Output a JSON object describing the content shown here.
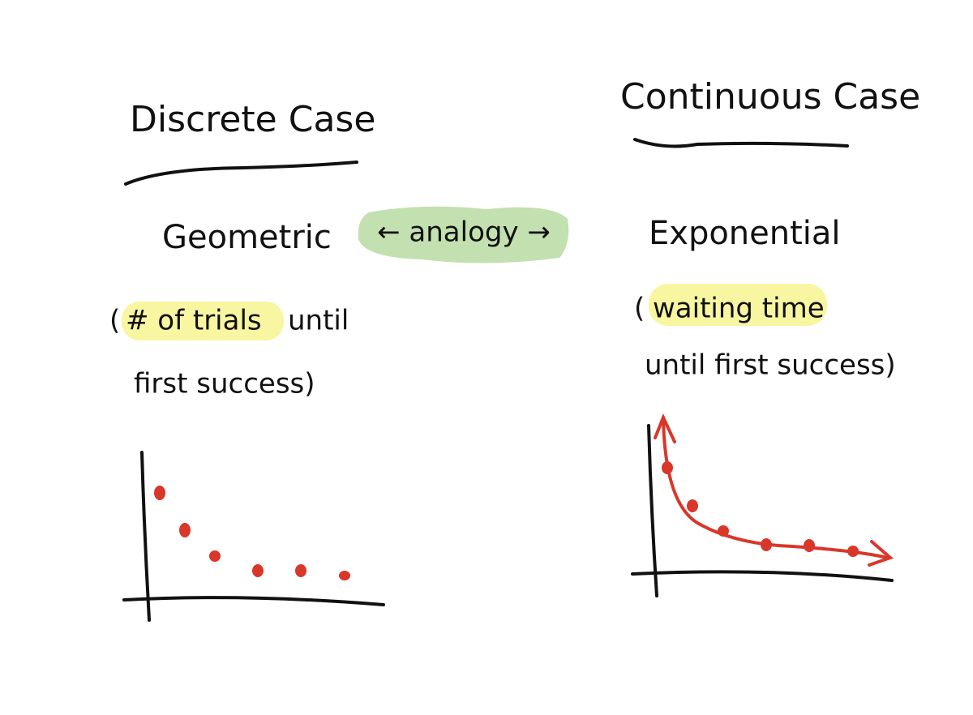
{
  "left": {
    "heading": "Discrete Case",
    "name": "Geometric",
    "note": {
      "open": "(",
      "highlight": "# of trials",
      "rest": "until",
      "line2": "first success)"
    }
  },
  "center": {
    "label": "← analogy →"
  },
  "right": {
    "heading": "Continuous Case",
    "name": "Exponential",
    "note": {
      "open": "(",
      "highlight": "waiting time",
      "line2": "until first success)"
    }
  }
}
